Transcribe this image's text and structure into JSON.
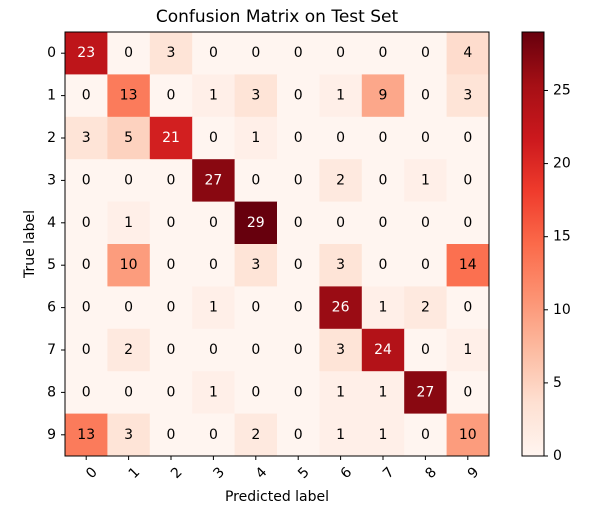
{
  "chart_data": {
    "type": "heatmap",
    "title": "Confusion Matrix on Test Set",
    "xlabel": "Predicted label",
    "ylabel": "True label",
    "x_categories": [
      "0",
      "1",
      "2",
      "3",
      "4",
      "5",
      "6",
      "7",
      "8",
      "9"
    ],
    "y_categories": [
      "0",
      "1",
      "2",
      "3",
      "4",
      "5",
      "6",
      "7",
      "8",
      "9"
    ],
    "values": [
      [
        23,
        0,
        3,
        0,
        0,
        0,
        0,
        0,
        0,
        4
      ],
      [
        0,
        13,
        0,
        1,
        3,
        0,
        1,
        9,
        0,
        3
      ],
      [
        3,
        5,
        21,
        0,
        1,
        0,
        0,
        0,
        0,
        0
      ],
      [
        0,
        0,
        0,
        27,
        0,
        0,
        2,
        0,
        1,
        0
      ],
      [
        0,
        1,
        0,
        0,
        29,
        0,
        0,
        0,
        0,
        0
      ],
      [
        0,
        10,
        0,
        0,
        3,
        0,
        3,
        0,
        0,
        14
      ],
      [
        0,
        0,
        0,
        1,
        0,
        0,
        26,
        1,
        2,
        0
      ],
      [
        0,
        2,
        0,
        0,
        0,
        0,
        3,
        24,
        0,
        1
      ],
      [
        0,
        0,
        0,
        1,
        0,
        0,
        1,
        1,
        27,
        0
      ],
      [
        13,
        3,
        0,
        0,
        2,
        0,
        1,
        1,
        0,
        10
      ]
    ],
    "colormap": "Reds",
    "vmin": 0,
    "vmax": 29,
    "colorbar_ticks": [
      0,
      5,
      10,
      15,
      20,
      25
    ],
    "x_tick_rotation_deg": 45,
    "grid": false
  }
}
